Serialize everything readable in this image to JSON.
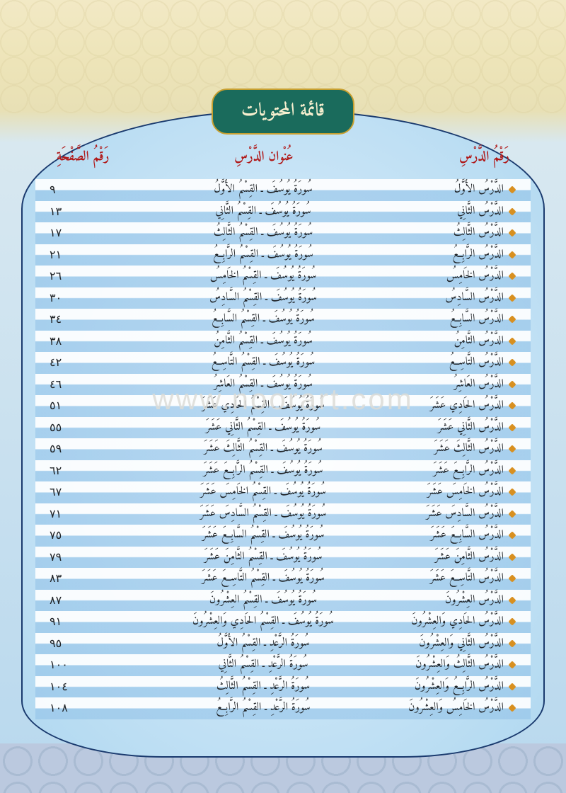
{
  "title": "قائمة المحتويات",
  "watermark": "www.noorart.com",
  "colors": {
    "bg_top": "#f2e9c5",
    "bg_bottom": "#b8d8ee",
    "oval_border": "#1a3a6e",
    "badge_bg": "#1a6b5c",
    "badge_text": "#f8f0d0",
    "badge_border": "#c8a030",
    "header_text": "#b01818",
    "row_text": "#202428",
    "bullet": "#d89020",
    "stripe_light": "rgba(255,255,255,0.9)",
    "stripe_blue": "rgba(140,190,230,0.5)"
  },
  "table": {
    "headers": {
      "lesson": "رَقْمُ الدَّرْسِ",
      "title": "عُنْوان الدَّرْسِ",
      "page": "رَقْمُ الصَّفْحَةِ"
    },
    "rows": [
      {
        "lesson": "الدَّرْسُ الأَوَّلُ",
        "title": "سُورَةُ يُوسُفَ ـ القِسْمُ الأَوَّلُ",
        "page": "٩"
      },
      {
        "lesson": "الدَّرْسُ الثَّانِي",
        "title": "سُورَةُ يُوسُفَ ـ القِسْمُ الثَّانِي",
        "page": "١٣"
      },
      {
        "lesson": "الدَّرْسُ الثَّالِثُ",
        "title": "سُورَةُ يُوسُفَ ـ القِسْمُ الثَّالِثُ",
        "page": "١٧"
      },
      {
        "lesson": "الدَّرْسُ الرَّابِعُ",
        "title": "سُورَةُ يُوسُفَ ـ القِسْمُ الرَّابِعُ",
        "page": "٢١"
      },
      {
        "lesson": "الدَّرْسُ الخَامِسُ",
        "title": "سُورَةُ يُوسُفَ ـ القِسْمُ الخَامِسُ",
        "page": "٢٦"
      },
      {
        "lesson": "الدَّرْسُ السَّادِسُ",
        "title": "سُورَةُ يُوسُفَ ـ القِسْمُ السَّادِسُ",
        "page": "٣٠"
      },
      {
        "lesson": "الدَّرْسُ السَّابِعُ",
        "title": "سُورَةُ يُوسُفَ ـ القِسْمُ السَّابِعُ",
        "page": "٣٤"
      },
      {
        "lesson": "الدَّرْسُ الثَّامِنُ",
        "title": "سُورَةُ يُوسُفَ ـ القِسْمُ الثَّامِنُ",
        "page": "٣٨"
      },
      {
        "lesson": "الدَّرْسُ التَّاسِعُ",
        "title": "سُورَةُ يُوسُفَ ـ القِسْمُ التَّاسِعُ",
        "page": "٤٢"
      },
      {
        "lesson": "الدَّرْسُ العَاشِرُ",
        "title": "سُورَةُ يُوسُفَ ـ القِسْمُ العَاشِرُ",
        "page": "٤٦"
      },
      {
        "lesson": "الدَّرْسُ الحَادِي عَشَرَ",
        "title": "سُورَةُ يُوسُفَ ـ القِسْمُ الحَادِي عَشَرَ",
        "page": "٥١"
      },
      {
        "lesson": "الدَّرْسُ الثَّانِي عَشَرَ",
        "title": "سُورَةُ يُوسُفَ ـ القِسْمُ الثَّانِي عَشَرَ",
        "page": "٥٥"
      },
      {
        "lesson": "الدَّرْسُ الثَّالِثَ عَشَرَ",
        "title": "سُورَةُ يُوسُفَ ـ القِسْمُ الثَّالِثَ عَشَرَ",
        "page": "٥٩"
      },
      {
        "lesson": "الدَّرْسُ الرَّابِعَ عَشَرَ",
        "title": "سُورَةُ يُوسُفَ ـ القِسْمُ الرَّابِعَ عَشَرَ",
        "page": "٦٢"
      },
      {
        "lesson": "الدَّرْسُ الخَامِسَ عَشَرَ",
        "title": "سُورَةُ يُوسُفَ ـ القِسْمُ الخَامِسَ عَشَرَ",
        "page": "٦٧"
      },
      {
        "lesson": "الدَّرْسُ السَّادِسَ عَشَرَ",
        "title": "سُورَةُ يُوسُفَ ـ القِسْمُ السَّادِسَ عَشَرَ",
        "page": "٧١"
      },
      {
        "lesson": "الدَّرْسُ السَّابِعَ عَشَرَ",
        "title": "سُورَةُ يُوسُفَ ـ القِسْمُ السَّابِعَ عَشَرَ",
        "page": "٧٥"
      },
      {
        "lesson": "الدَّرْسُ الثَّامِنَ عَشَرَ",
        "title": "سُورَةُ يُوسُفَ ـ القِسْمُ الثَّامِنَ عَشَرَ",
        "page": "٧٩"
      },
      {
        "lesson": "الدَّرْسُ التَّاسِعَ عَشَرَ",
        "title": "سُورَةُ يُوسُفَ ـ القِسْمُ التَّاسِعَ عَشَرَ",
        "page": "٨٣"
      },
      {
        "lesson": "الدَّرْسُ العِشْرُونَ",
        "title": "سُورَةُ يُوسُفَ ـ القِسْمُ العِشْرُونَ",
        "page": "٨٧"
      },
      {
        "lesson": "الدَّرْسُ الحَادِي وَالعِشْرُونَ",
        "title": "سُورَةُ يُوسُفَ ـ القِسْمُ الحَادِي وَالعِشْرُونَ",
        "page": "٩١"
      },
      {
        "lesson": "الدَّرْسُ الثَّانِي وَالعِشْرُونَ",
        "title": "سُورَةُ الرَّعْدِ ـ القِسْمُ الأَوَّلُ",
        "page": "٩٥"
      },
      {
        "lesson": "الدَّرْسُ الثَّالِثُ وَالعِشْرُونَ",
        "title": "سُورَةُ الرَّعْدِ ـ القِسْمُ الثَّانِي",
        "page": "١٠٠"
      },
      {
        "lesson": "الدَّرْسُ الرَّابِعُ وَالعِشْرُونَ",
        "title": "سُورَةُ الرَّعْدِ ـ القِسْمُ الثَّالِثُ",
        "page": "١٠٤"
      },
      {
        "lesson": "الدَّرْسُ الخَامِسُ وَالعِشْرُونَ",
        "title": "سُورَةُ الرَّعْدِ ـ القِسْمُ الرَّابِعُ",
        "page": "١٠٨"
      }
    ]
  }
}
